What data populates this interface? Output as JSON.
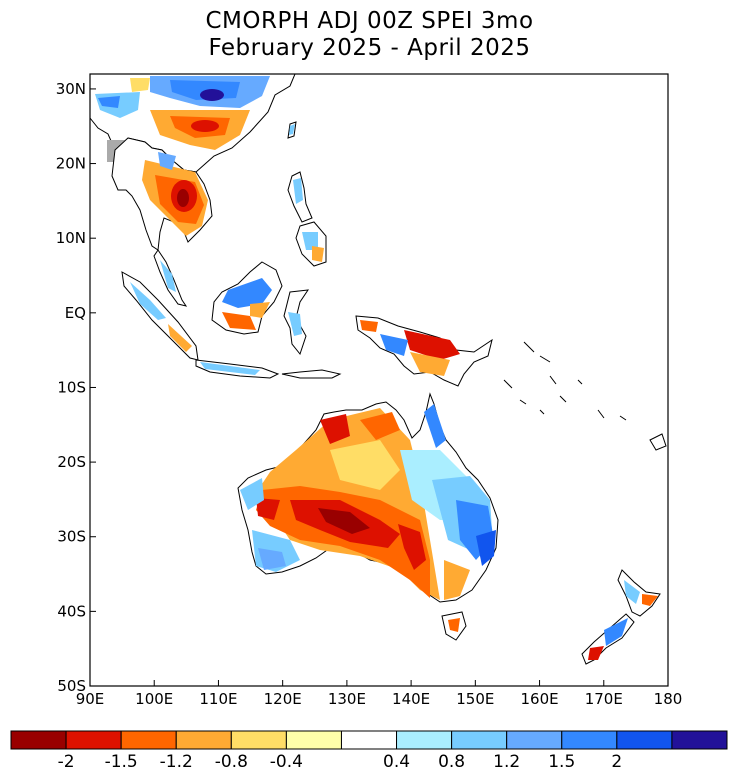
{
  "title": {
    "line1": "CMORPH ADJ 00Z SPEI 3mo",
    "line2": "February 2025 - April 2025"
  },
  "map": {
    "lon_range": [
      90,
      180
    ],
    "lat_range": [
      -50,
      32
    ],
    "lat_ticks": [
      {
        "lat": 30,
        "label": "30N"
      },
      {
        "lat": 20,
        "label": "20N"
      },
      {
        "lat": 10,
        "label": "10N"
      },
      {
        "lat": 0,
        "label": "EQ"
      },
      {
        "lat": -10,
        "label": "10S"
      },
      {
        "lat": -20,
        "label": "20S"
      },
      {
        "lat": -30,
        "label": "30S"
      },
      {
        "lat": -40,
        "label": "40S"
      },
      {
        "lat": -50,
        "label": "50S"
      }
    ],
    "lon_ticks": [
      {
        "lon": 90,
        "label": "90E"
      },
      {
        "lon": 100,
        "label": "100E"
      },
      {
        "lon": 110,
        "label": "110E"
      },
      {
        "lon": 120,
        "label": "120E"
      },
      {
        "lon": 130,
        "label": "130E"
      },
      {
        "lon": 140,
        "label": "140E"
      },
      {
        "lon": 150,
        "label": "150E"
      },
      {
        "lon": 160,
        "label": "160E"
      },
      {
        "lon": 170,
        "label": "170E"
      },
      {
        "lon": 180,
        "label": "180"
      }
    ]
  },
  "colorbar": {
    "colors": [
      "#990000",
      "#dd1100",
      "#ff6600",
      "#ffaa33",
      "#ffdd66",
      "#ffffaa",
      "#ffffff",
      "#aaeeff",
      "#77ccff",
      "#66aaff",
      "#3388ff",
      "#1155ee",
      "#221199"
    ],
    "labels": [
      "-2",
      "-1.5",
      "-1.2",
      "-0.8",
      "-0.4",
      "0.4",
      "0.8",
      "1.2",
      "1.5",
      "2"
    ]
  }
}
